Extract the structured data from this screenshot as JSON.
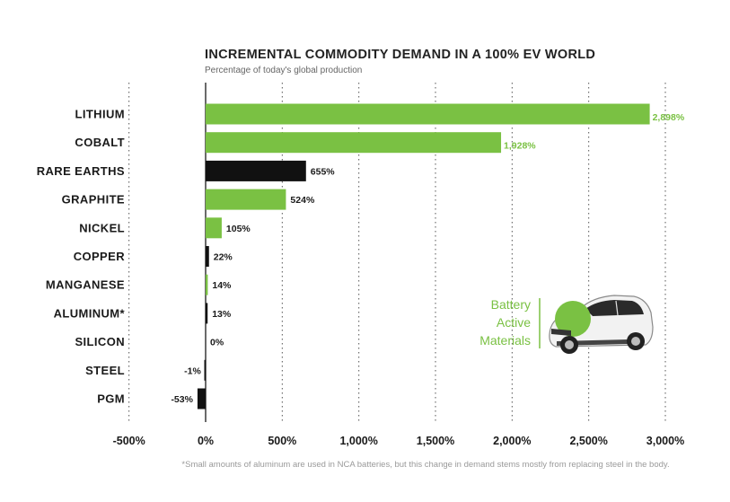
{
  "chart_data": {
    "type": "bar",
    "orientation": "horizontal",
    "title": "INCREMENTAL COMMODITY DEMAND IN A 100% EV WORLD",
    "subtitle": "Percentage of today's global production",
    "categories": [
      "LITHIUM",
      "COBALT",
      "RARE EARTHS",
      "GRAPHITE",
      "NICKEL",
      "COPPER",
      "MANGANESE",
      "ALUMINUM*",
      "SILICON",
      "STEEL",
      "PGM"
    ],
    "values": [
      2898,
      1928,
      655,
      524,
      105,
      22,
      14,
      13,
      0,
      -1,
      -53
    ],
    "value_labels": [
      "2,898%",
      "1,928%",
      "655%",
      "524%",
      "105%",
      "22%",
      "14%",
      "13%",
      "0%",
      "-1%",
      "-53%"
    ],
    "groups": [
      "battery",
      "battery",
      "other",
      "battery",
      "battery",
      "other",
      "battery",
      "other",
      "other",
      "other",
      "other"
    ],
    "xlim": [
      -500,
      3000
    ],
    "xticks": [
      -500,
      0,
      500,
      1000,
      1500,
      2000,
      2500,
      3000
    ],
    "xtick_labels": [
      "-500%",
      "0%",
      "500%",
      "1,000%",
      "1,500%",
      "2,000%",
      "2,500%",
      "3,000%"
    ],
    "grid": true,
    "colors": {
      "battery": "#7ac143",
      "other": "#111111"
    },
    "legend_callout": [
      "Battery",
      "Active",
      "Materials"
    ],
    "footnote": "*Small amounts of aluminum are used in NCA batteries, but this change in demand stems mostly from replacing steel in the body."
  },
  "car_image": {
    "icon": "electric-car-icon",
    "badge_color": "#7ac143"
  }
}
